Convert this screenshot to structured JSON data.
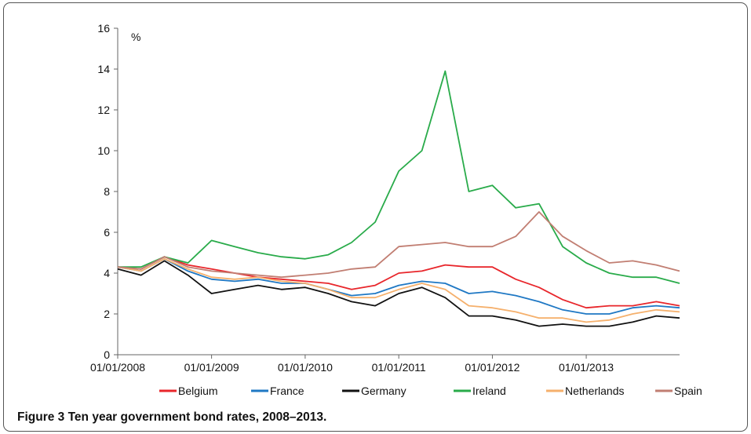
{
  "figure": {
    "label": "Figure 3",
    "caption": "Ten year government bond rates, 2008–2013."
  },
  "chart_data": {
    "type": "line",
    "ylabel": "%",
    "ylim": [
      0,
      16
    ],
    "yticks": [
      0,
      2,
      4,
      6,
      8,
      10,
      12,
      14,
      16
    ],
    "xlim": [
      "2008-01-01",
      "2013-12-31"
    ],
    "xticks": [
      "01/01/2008",
      "01/01/2009",
      "01/01/2010",
      "01/01/2011",
      "01/01/2012",
      "01/01/2013"
    ],
    "grid": false,
    "legend": "bottom",
    "x": [
      "2008-01-01",
      "2008-04-01",
      "2008-07-01",
      "2008-10-01",
      "2009-01-01",
      "2009-04-01",
      "2009-07-01",
      "2009-10-01",
      "2010-01-01",
      "2010-04-01",
      "2010-07-01",
      "2010-10-01",
      "2011-01-01",
      "2011-04-01",
      "2011-07-01",
      "2011-10-01",
      "2012-01-01",
      "2012-04-01",
      "2012-07-01",
      "2012-10-01",
      "2013-01-01",
      "2013-04-01",
      "2013-07-01",
      "2013-10-01",
      "2013-12-31"
    ],
    "series": [
      {
        "name": "Belgium",
        "color": "#e8262b",
        "values": [
          4.3,
          4.2,
          4.8,
          4.4,
          4.2,
          4.0,
          3.8,
          3.7,
          3.6,
          3.5,
          3.2,
          3.4,
          4.0,
          4.1,
          4.4,
          4.3,
          4.3,
          3.7,
          3.3,
          2.7,
          2.3,
          2.4,
          2.4,
          2.6,
          2.4
        ]
      },
      {
        "name": "France",
        "color": "#1f78c4",
        "values": [
          4.3,
          4.1,
          4.7,
          4.1,
          3.7,
          3.6,
          3.7,
          3.5,
          3.5,
          3.2,
          2.9,
          3.0,
          3.4,
          3.6,
          3.5,
          3.0,
          3.1,
          2.9,
          2.6,
          2.2,
          2.0,
          2.0,
          2.3,
          2.4,
          2.3
        ]
      },
      {
        "name": "Germany",
        "color": "#111111",
        "values": [
          4.2,
          3.9,
          4.6,
          3.9,
          3.0,
          3.2,
          3.4,
          3.2,
          3.3,
          3.0,
          2.6,
          2.4,
          3.0,
          3.3,
          2.8,
          1.9,
          1.9,
          1.7,
          1.4,
          1.5,
          1.4,
          1.4,
          1.6,
          1.9,
          1.8
        ]
      },
      {
        "name": "Ireland",
        "color": "#29ab4a",
        "values": [
          4.3,
          4.3,
          4.8,
          4.5,
          5.6,
          5.3,
          5.0,
          4.8,
          4.7,
          4.9,
          5.5,
          6.5,
          9.0,
          10.0,
          13.9,
          8.0,
          8.3,
          7.2,
          7.4,
          5.3,
          4.5,
          4.0,
          3.8,
          3.8,
          3.5
        ]
      },
      {
        "name": "Netherlands",
        "color": "#f5b06c",
        "values": [
          4.3,
          4.1,
          4.7,
          4.2,
          3.8,
          3.7,
          3.8,
          3.6,
          3.5,
          3.2,
          2.8,
          2.8,
          3.2,
          3.5,
          3.2,
          2.4,
          2.3,
          2.1,
          1.8,
          1.8,
          1.6,
          1.7,
          2.0,
          2.2,
          2.1
        ]
      },
      {
        "name": "Spain",
        "color": "#c17e72",
        "values": [
          4.3,
          4.2,
          4.8,
          4.3,
          4.1,
          4.0,
          3.9,
          3.8,
          3.9,
          4.0,
          4.2,
          4.3,
          5.3,
          5.4,
          5.5,
          5.3,
          5.3,
          5.8,
          7.0,
          5.8,
          5.1,
          4.5,
          4.6,
          4.4,
          4.1
        ]
      }
    ]
  }
}
